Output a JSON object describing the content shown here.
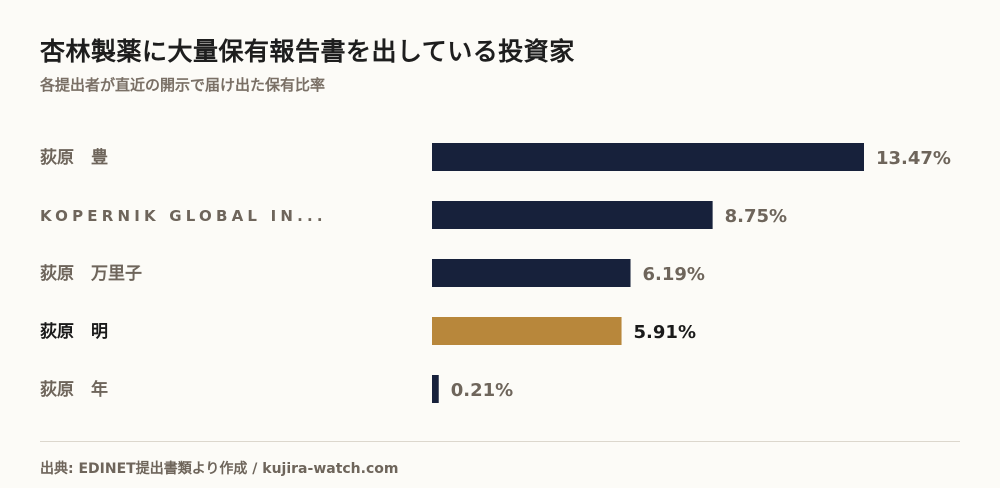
{
  "title": "杏林製薬に大量保有報告書を出している投資家",
  "subtitle": "各提出者が直近の開示で届け出た保有比率",
  "source": "出典: EDINET提出書類より作成 / kujira-watch.com",
  "colors": {
    "bar": "#17213b",
    "highlight": "#b8873b",
    "label": "#6e655b",
    "highlight_label": "#1a1a1a"
  },
  "chart_data": {
    "type": "bar",
    "orientation": "horizontal",
    "categories": [
      "荻原　豊",
      "KOPERNIK GLOBAL IN...",
      "荻原　万里子",
      "荻原　明",
      "荻原　年"
    ],
    "values": [
      13.47,
      8.75,
      6.19,
      5.91,
      0.21
    ],
    "value_labels": [
      "13.47%",
      "8.75%",
      "6.19%",
      "5.91%",
      "0.21%"
    ],
    "highlight_index": 3,
    "unit": "%"
  }
}
